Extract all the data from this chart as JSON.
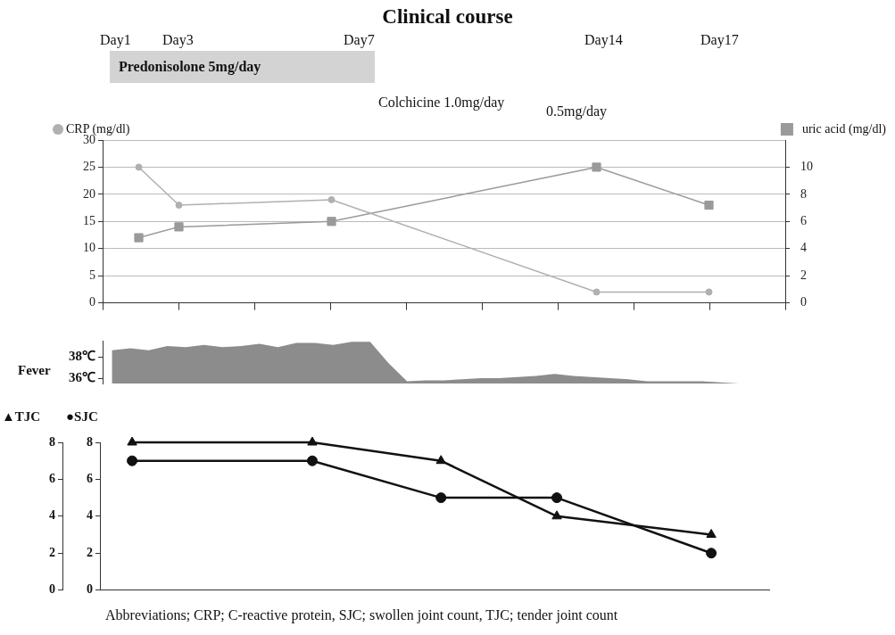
{
  "chart_data": [
    {
      "type": "line",
      "title": "Clinical course",
      "annotations": [
        "Day1",
        "Day3",
        "Day7",
        "Day14",
        "Day17",
        "Predonisolone 5mg/day",
        "Colchicine 1.0mg/day",
        "0.5mg/day"
      ],
      "categories": [
        null,
        null,
        null,
        null,
        null,
        null,
        null,
        null,
        null,
        null,
        null,
        null,
        null,
        null,
        null,
        null,
        null,
        null,
        null,
        null,
        null,
        null,
        null,
        null,
        null,
        null,
        null,
        null,
        null,
        null,
        null,
        null,
        null,
        null,
        null,
        null,
        null,
        null,
        null,
        null,
        null,
        null,
        null,
        null,
        null,
        null,
        null,
        null,
        null,
        null,
        null,
        null,
        null,
        null,
        null,
        null,
        null,
        null,
        null,
        null,
        null,
        null,
        null,
        null,
        null,
        null,
        null,
        null,
        null,
        null,
        null,
        null,
        null,
        null,
        null,
        null,
        null,
        null,
        null,
        null,
        null,
        null,
        null,
        null,
        null
      ],
      "series": [
        {
          "name": "CRP (mg/dl)",
          "color": "#b0b0b0",
          "marker": "circle",
          "values": [
            null,
            null,
            null,
            null,
            25,
            null,
            null,
            null,
            null,
            18,
            null,
            null,
            null,
            null,
            null,
            null,
            null,
            null,
            null,
            null,
            null,
            null,
            null,
            null,
            null,
            null,
            null,
            null,
            19,
            null,
            null,
            null,
            null,
            null,
            null,
            null,
            null,
            null,
            null,
            null,
            null,
            null,
            null,
            null,
            null,
            null,
            null,
            null,
            null,
            null,
            null,
            null,
            null,
            null,
            null,
            null,
            null,
            null,
            null,
            null,
            null,
            2,
            null,
            null,
            null,
            null,
            null,
            null,
            null,
            null,
            null,
            null,
            null,
            null,
            null,
            2,
            null,
            null,
            null,
            null,
            null,
            null,
            null,
            null,
            null
          ]
        },
        {
          "name": "uric acid (mg/dl)",
          "color": "#9a9a9a",
          "marker": "square",
          "axis": "y2",
          "values": [
            null,
            null,
            null,
            null,
            4.8,
            null,
            null,
            null,
            null,
            5.6,
            null,
            null,
            null,
            null,
            null,
            null,
            null,
            null,
            null,
            null,
            null,
            null,
            null,
            null,
            null,
            null,
            null,
            null,
            6,
            null,
            null,
            null,
            null,
            null,
            null,
            null,
            null,
            null,
            null,
            null,
            null,
            null,
            null,
            null,
            null,
            null,
            null,
            null,
            null,
            null,
            null,
            null,
            null,
            null,
            null,
            null,
            null,
            null,
            null,
            null,
            null,
            10,
            null,
            null,
            null,
            null,
            null,
            null,
            null,
            null,
            null,
            null,
            null,
            null,
            null,
            7.2,
            null,
            null,
            null,
            null,
            null,
            null,
            null,
            null,
            null
          ]
        }
      ],
      "ylim": [
        0,
        30
      ],
      "yticks": [
        0,
        5,
        10,
        15,
        20,
        25,
        30
      ],
      "y2lim": [
        0,
        12
      ],
      "y2ticks": [
        0,
        2,
        4,
        6,
        8,
        10
      ],
      "grid": "y",
      "legend": "top",
      "tick_labels": "y"
    },
    {
      "type": "area",
      "ylabel": "Fever",
      "categories": [
        null,
        null,
        null,
        null,
        null,
        null,
        null,
        null,
        null,
        null,
        null,
        null,
        null,
        null,
        null,
        null,
        null,
        null,
        null,
        null,
        null,
        null,
        null,
        null,
        null,
        null,
        null,
        null,
        null,
        null,
        null,
        null,
        null,
        null,
        null,
        null,
        null
      ],
      "series": [
        {
          "color": "#8c8c8c",
          "values": [
            38.6,
            38.8,
            38.6,
            39.0,
            38.9,
            39.1,
            38.9,
            39.0,
            39.2,
            38.9,
            39.3,
            39.3,
            39.1,
            39.4,
            39.4,
            37.4,
            35.7,
            35.8,
            35.8,
            35.9,
            36.0,
            36.0,
            36.1,
            36.2,
            36.4,
            36.2,
            36.1,
            36.0,
            35.9,
            35.7,
            35.7,
            35.7,
            35.7,
            35.6,
            35.5,
            null,
            null
          ]
        }
      ],
      "ylim": [
        35.5,
        39.5
      ],
      "yticks": [
        {
          "value": 36,
          "label": "36℃"
        },
        {
          "value": 38,
          "label": "38℃"
        }
      ],
      "tick_labels": "y"
    },
    {
      "type": "line",
      "ylabel": "▲TJC",
      "y2label": "●SJC",
      "annotations": [
        "Abbreviations; CRP; C-reactive protein, SJC; swollen joint count, TJC; tender joint count"
      ],
      "categories": [
        null,
        null,
        null,
        null,
        null,
        null,
        null,
        null,
        null,
        null,
        null,
        null,
        null,
        null,
        null,
        null,
        null,
        null,
        null,
        null,
        null,
        null,
        null,
        null,
        null,
        null,
        null,
        null,
        null,
        null,
        null,
        null,
        null,
        null,
        null,
        null,
        null,
        null,
        null,
        null,
        null,
        null,
        null,
        null,
        null,
        null,
        null,
        null,
        null,
        null,
        null,
        null
      ],
      "series": [
        {
          "color": "#111111",
          "marker": "triangle",
          "values": [
            null,
            null,
            8,
            null,
            null,
            null,
            null,
            null,
            null,
            null,
            null,
            null,
            null,
            null,
            null,
            null,
            8,
            null,
            null,
            null,
            null,
            null,
            null,
            null,
            null,
            null,
            7,
            null,
            null,
            null,
            null,
            null,
            null,
            null,
            null,
            4,
            null,
            null,
            null,
            null,
            null,
            null,
            null,
            null,
            null,
            null,
            null,
            3,
            null,
            null,
            null,
            null
          ]
        },
        {
          "color": "#111111",
          "marker": "circle",
          "axis": "y2",
          "values": [
            null,
            null,
            7,
            null,
            null,
            null,
            null,
            null,
            null,
            null,
            null,
            null,
            null,
            null,
            null,
            null,
            7,
            null,
            null,
            null,
            null,
            null,
            null,
            null,
            null,
            null,
            5,
            null,
            null,
            null,
            null,
            null,
            null,
            null,
            null,
            5,
            null,
            null,
            null,
            null,
            null,
            null,
            null,
            null,
            null,
            null,
            null,
            2,
            null,
            null,
            null,
            null
          ]
        }
      ],
      "ylim": [
        0,
        8
      ],
      "yticks": [
        0,
        2,
        4,
        6,
        8
      ],
      "y2lim": [
        0,
        8
      ],
      "y2ticks": [
        0,
        2,
        4,
        6,
        8
      ],
      "tick_labels": "y"
    }
  ]
}
